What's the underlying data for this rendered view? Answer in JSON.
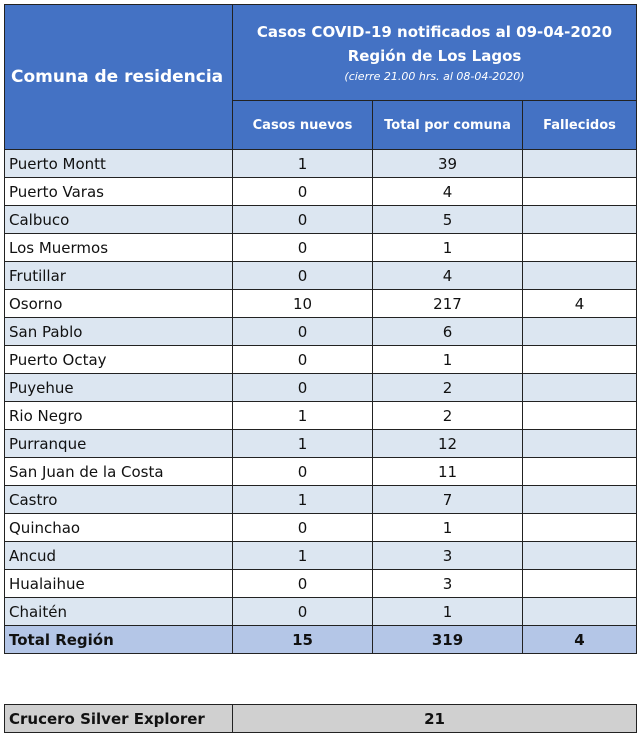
{
  "header": {
    "title": "Comuna de residencia",
    "lines": [
      "Casos COVID-19 notificados al 09-04-2020",
      "Región de Los Lagos",
      "(cierre 21.00 hrs. al 08-04-2020)"
    ],
    "columns": [
      "Casos nuevos",
      "Total por comuna",
      "Fallecidos"
    ]
  },
  "table": {
    "rows": [
      [
        "Puerto Montt",
        1,
        39,
        null
      ],
      [
        "Puerto Varas",
        0,
        4,
        null
      ],
      [
        "Calbuco",
        0,
        5,
        null
      ],
      [
        "Los Muermos",
        0,
        1,
        null
      ],
      [
        "Frutillar",
        0,
        4,
        null
      ],
      [
        "Osorno",
        10,
        217,
        4
      ],
      [
        "San Pablo",
        0,
        6,
        null
      ],
      [
        "Puerto Octay",
        0,
        1,
        null
      ],
      [
        "Puyehue",
        0,
        2,
        null
      ],
      [
        "Rio Negro",
        1,
        2,
        null
      ],
      [
        "Purranque",
        1,
        12,
        null
      ],
      [
        "San Juan de la Costa",
        0,
        11,
        null
      ],
      [
        "Castro",
        1,
        7,
        null
      ],
      [
        "Quinchao",
        0,
        1,
        null
      ],
      [
        "Ancud",
        1,
        3,
        null
      ],
      [
        "Hualaihue",
        0,
        3,
        null
      ],
      [
        "Chaitén",
        0,
        1,
        null
      ]
    ],
    "total": [
      "Total Región",
      15,
      319,
      4
    ]
  },
  "extra": [
    "Crucero Silver Explorer",
    21
  ]
}
